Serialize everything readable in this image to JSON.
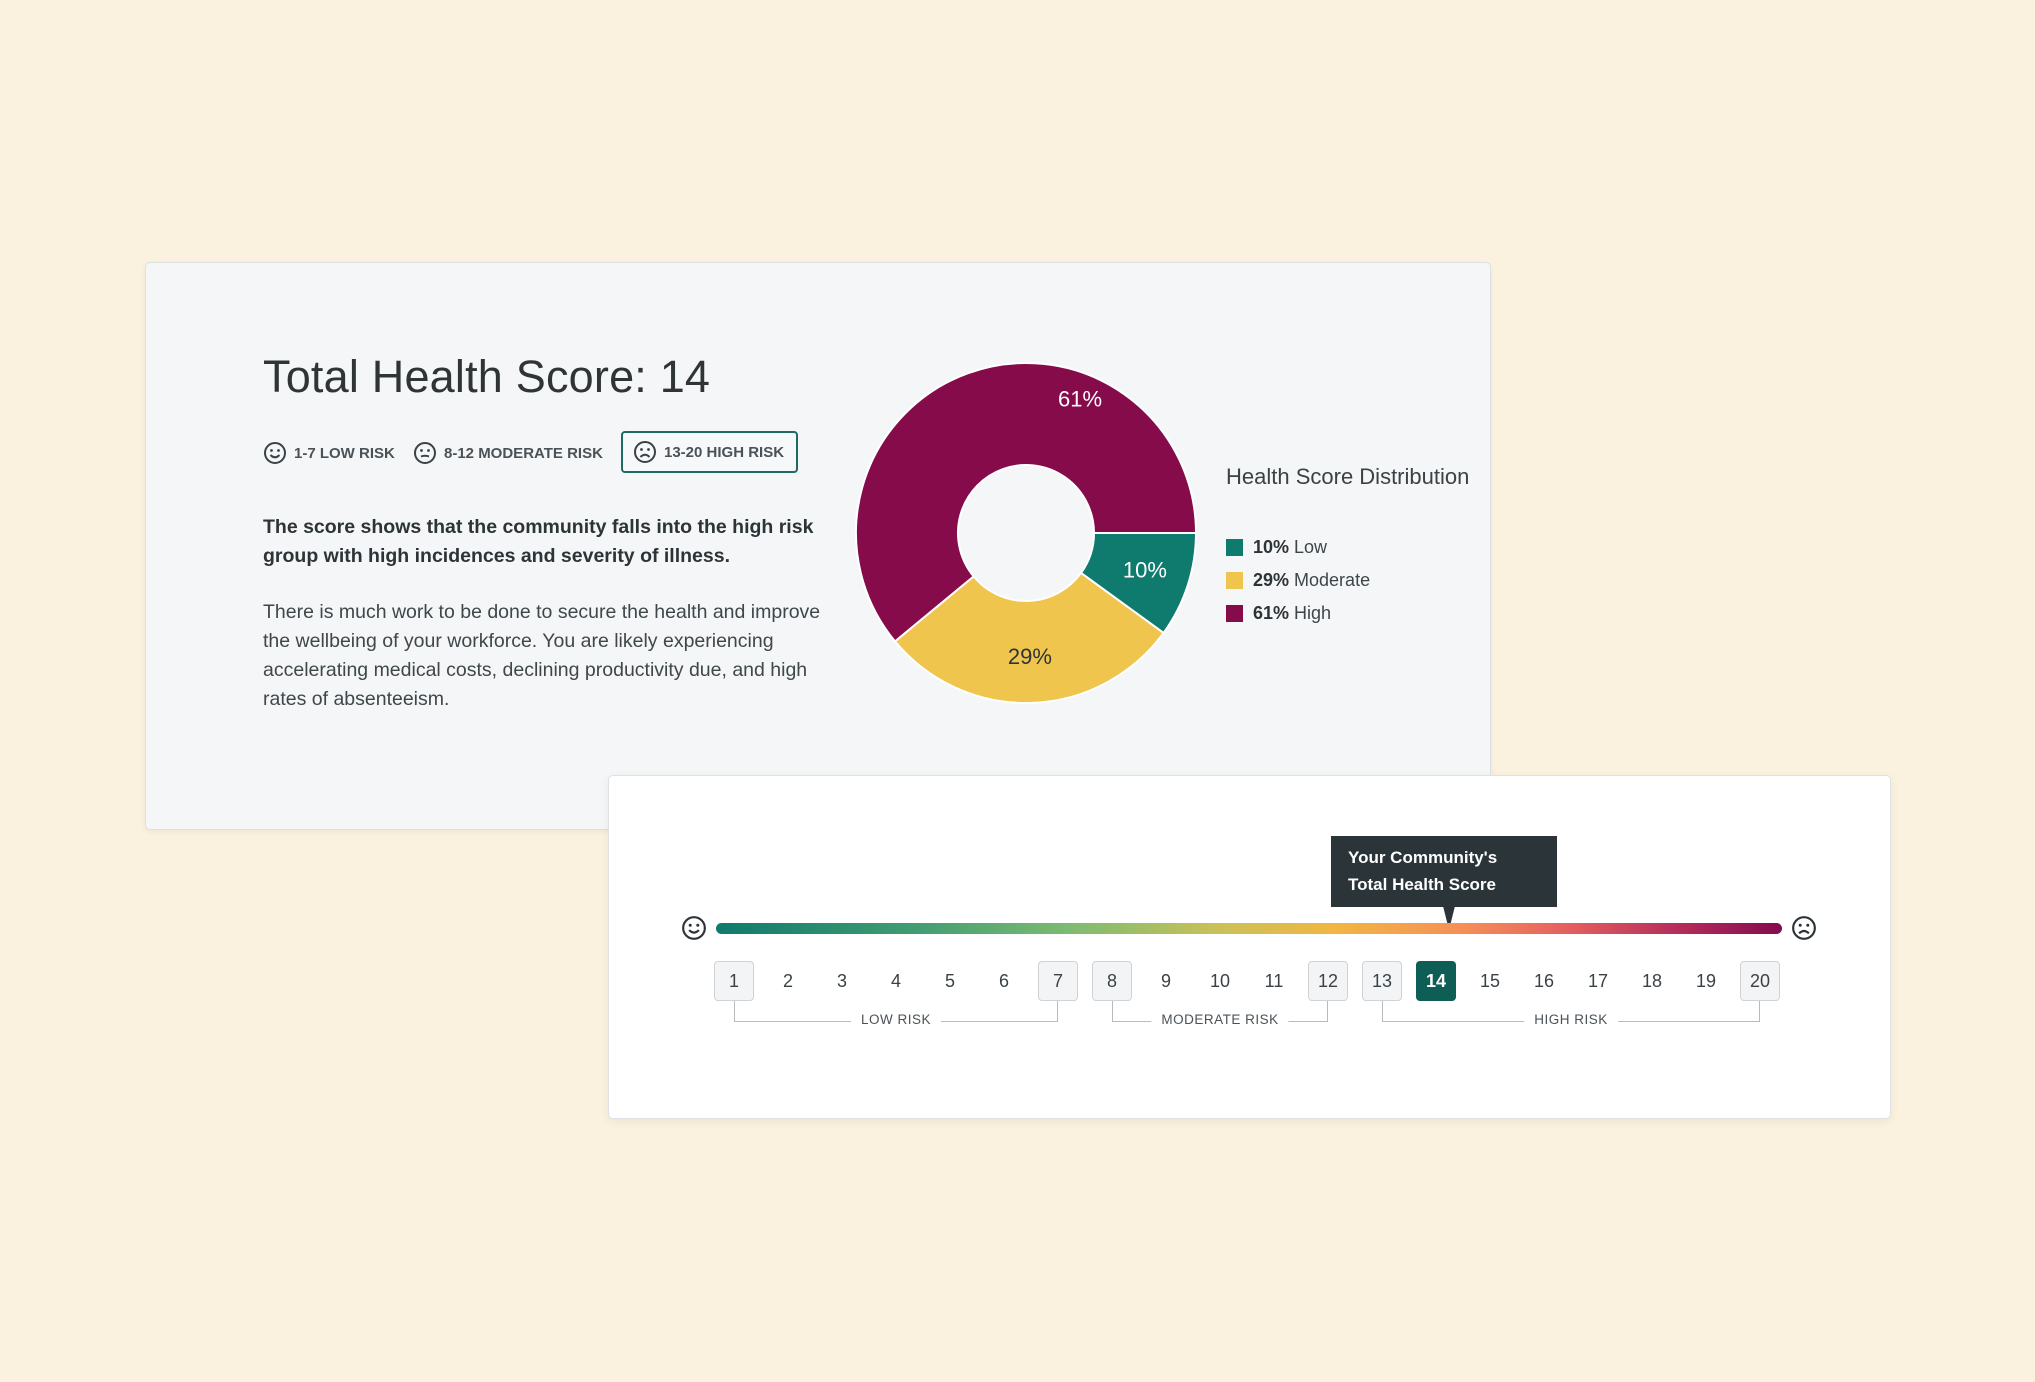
{
  "summary": {
    "title": "Total Health Score: 14",
    "risk_ranges": [
      {
        "label": "1-7 LOW RISK",
        "face": "smile-face-icon",
        "selected": false
      },
      {
        "label": "8-12 MODERATE RISK",
        "face": "neutral-face-icon",
        "selected": false
      },
      {
        "label": "13-20 HIGH RISK",
        "face": "sad-face-icon",
        "selected": true
      }
    ],
    "lead_text": "The score shows that the community falls into the high risk group with high incidences and severity of illness.",
    "body_text": "There is much work to be done to secure the health and improve the wellbeing of your workforce. You are likely experiencing accelerating medical costs, declining productivity due, and high rates of absenteeism."
  },
  "chart_data": {
    "type": "pie",
    "title": "Health Score Distribution",
    "slices": [
      {
        "name": "Low",
        "value": 10,
        "label": "10%",
        "color": "#0e7b6e"
      },
      {
        "name": "Moderate",
        "value": 29,
        "label": "29%",
        "color": "#f0c54e"
      },
      {
        "name": "High",
        "value": 61,
        "label": "61%",
        "color": "#860b4b"
      }
    ],
    "legend": [
      {
        "pct": "10%",
        "name": "Low",
        "color": "#0e7b6e"
      },
      {
        "pct": "29%",
        "name": "Moderate",
        "color": "#f0c54e"
      },
      {
        "pct": "61%",
        "name": "High",
        "color": "#860b4b"
      }
    ],
    "legend_position": "right"
  },
  "scale": {
    "tooltip": {
      "line1": "Your Community's",
      "line2": "Total Health Score"
    },
    "current": 14,
    "min": 1,
    "max": 20,
    "numbers": [
      "1",
      "2",
      "3",
      "4",
      "5",
      "6",
      "7",
      "8",
      "9",
      "10",
      "11",
      "12",
      "13",
      "14",
      "15",
      "16",
      "17",
      "18",
      "19",
      "20"
    ],
    "boxed": [
      "1",
      "7",
      "8",
      "12",
      "13",
      "20"
    ],
    "brackets": [
      {
        "label": "LOW RISK",
        "from": 1,
        "to": 7
      },
      {
        "label": "MODERATE RISK",
        "from": 8,
        "to": 12
      },
      {
        "label": "HIGH RISK",
        "from": 13,
        "to": 20
      }
    ],
    "left_face": "smile-face-icon",
    "right_face": "sad-face-icon"
  }
}
